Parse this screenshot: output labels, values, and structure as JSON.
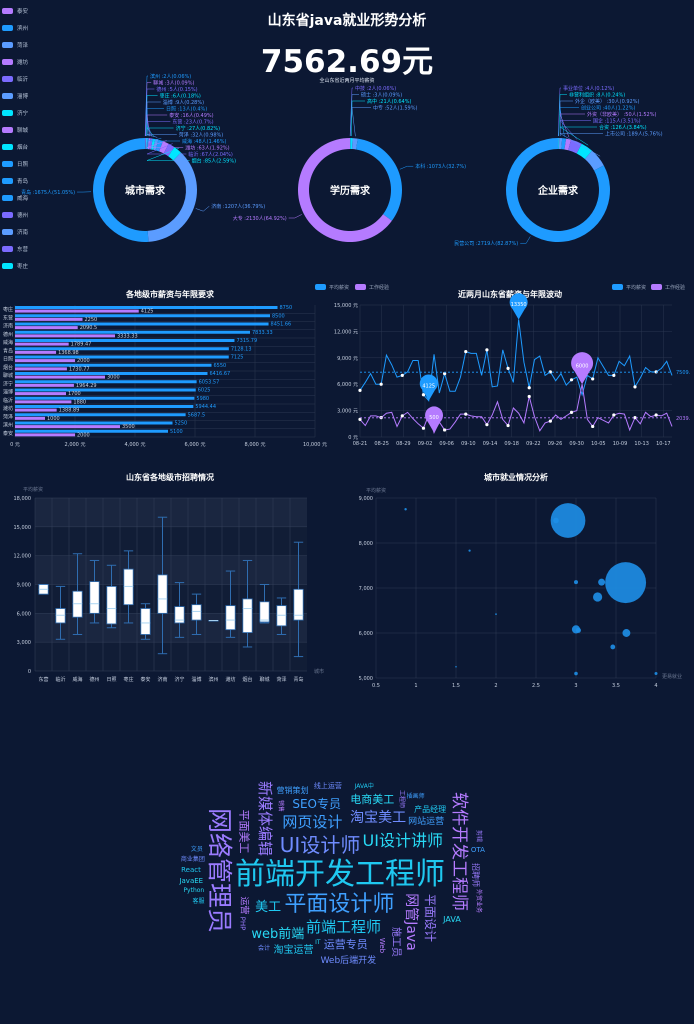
{
  "header": {
    "title": "山东省java就业形势分析",
    "avg_salary": "7562.69元",
    "subtitle": "全山东省近两月平均薪资"
  },
  "city_legend": [
    {
      "name": "泰安",
      "color": "#b57bff"
    },
    {
      "name": "滨州",
      "color": "#1e9bff"
    },
    {
      "name": "菏泽",
      "color": "#5b9cff"
    },
    {
      "name": "潍坊",
      "color": "#b57bff"
    },
    {
      "name": "临沂",
      "color": "#7b6bff"
    },
    {
      "name": "淄博",
      "color": "#5b9cff"
    },
    {
      "name": "济宁",
      "color": "#00e5ff"
    },
    {
      "name": "聊城",
      "color": "#b57bff"
    },
    {
      "name": "烟台",
      "color": "#00e5ff"
    },
    {
      "name": "日照",
      "color": "#1e9bff"
    },
    {
      "name": "青岛",
      "color": "#1e9bff"
    },
    {
      "name": "威海",
      "color": "#1e9bff"
    },
    {
      "name": "德州",
      "color": "#7b6bff"
    },
    {
      "name": "济南",
      "color": "#5b9cff"
    },
    {
      "name": "东营",
      "color": "#7b6bff"
    },
    {
      "name": "枣庄",
      "color": "#00e5ff"
    }
  ],
  "donuts": [
    {
      "title": "城市需求",
      "slices": [
        {
          "label": "滨州 :2人(0.06%)",
          "value": 2,
          "color": "#1e9bff"
        },
        {
          "label": "聊城 :3人(0.09%)",
          "value": 3,
          "color": "#b57bff"
        },
        {
          "label": "德州 :5人(0.15%)",
          "value": 5,
          "color": "#7b6bff"
        },
        {
          "label": "枣庄 :6人(0.18%)",
          "value": 6,
          "color": "#00e5ff"
        },
        {
          "label": "淄博 :9人(0.28%)",
          "value": 9,
          "color": "#5b9cff"
        },
        {
          "label": "日照 :13人(0.4%)",
          "value": 13,
          "color": "#1e9bff"
        },
        {
          "label": "泰安 :16人(0.49%)",
          "value": 16,
          "color": "#b57bff"
        },
        {
          "label": "东营 :23人(0.7%)",
          "value": 23,
          "color": "#7b6bff"
        },
        {
          "label": "济宁 :27人(0.82%)",
          "value": 27,
          "color": "#00e5ff"
        },
        {
          "label": "菏泽 :32人(0.98%)",
          "value": 32,
          "color": "#5b9cff"
        },
        {
          "label": "威海 :48人(1.46%)",
          "value": 48,
          "color": "#1e9bff"
        },
        {
          "label": "潍坊 :63人(1.92%)",
          "value": 63,
          "color": "#b57bff"
        },
        {
          "label": "临沂 :67人(2.04%)",
          "value": 67,
          "color": "#7b6bff"
        },
        {
          "label": "烟台 :85人(2.59%)",
          "value": 85,
          "color": "#00e5ff"
        },
        {
          "label": "济南 :1207人(36.79%)",
          "value": 1207,
          "color": "#5b9cff"
        },
        {
          "label": "青岛 :1675人(51.05%)",
          "value": 1675,
          "color": "#1e9bff"
        }
      ]
    },
    {
      "title": "学历需求",
      "slices": [
        {
          "label": "中技 :2人(0.06%)",
          "value": 2,
          "color": "#7b6bff"
        },
        {
          "label": "硕士 :3人(0.09%)",
          "value": 3,
          "color": "#5b9cff"
        },
        {
          "label": "高中 :21人(0.64%)",
          "value": 21,
          "color": "#00e5ff"
        },
        {
          "label": "中专 :52人(1.59%)",
          "value": 52,
          "color": "#5b9cff"
        },
        {
          "label": "本科 :1073人(32.7%)",
          "value": 1073,
          "color": "#1e9bff"
        },
        {
          "label": "大专 :2130人(64.92%)",
          "value": 2130,
          "color": "#b57bff"
        }
      ]
    },
    {
      "title": "企业需求",
      "slices": [
        {
          "label": "事业单位 :4人(0.12%)",
          "value": 4,
          "color": "#7b6bff"
        },
        {
          "label": "非营利组织 :8人(0.24%)",
          "value": 8,
          "color": "#00e5ff"
        },
        {
          "label": "外企（欧美） :30人(0.92%)",
          "value": 30,
          "color": "#5b9cff"
        },
        {
          "label": "创业公司 :40人(1.22%)",
          "value": 40,
          "color": "#1e9bff"
        },
        {
          "label": "外资（非欧美） :50人(1.52%)",
          "value": 50,
          "color": "#b57bff"
        },
        {
          "label": "国企 :115人(3.51%)",
          "value": 115,
          "color": "#7b6bff"
        },
        {
          "label": "合资 :126人(3.84%)",
          "value": 126,
          "color": "#00e5ff"
        },
        {
          "label": "上市公司 :189人(5.76%)",
          "value": 189,
          "color": "#5b9cff"
        },
        {
          "label": "民营公司 :2719人(82.87%)",
          "value": 2719,
          "color": "#1e9bff"
        }
      ]
    }
  ],
  "chart_data": [
    {
      "type": "bar",
      "title": "各地级市薪资与年限要求",
      "legend": [
        "平均薪资",
        "工作经验"
      ],
      "xlim": [
        0,
        10000
      ],
      "xticks": [
        "0 元",
        "2,000 元",
        "4,000 元",
        "6,000 元",
        "8,000 元",
        "10,000 元"
      ],
      "categories": [
        "枣庄",
        "东营",
        "济南",
        "德州",
        "威海",
        "青岛",
        "日照",
        "烟台",
        "聊城",
        "济宁",
        "淄博",
        "临沂",
        "潍坊",
        "菏泽",
        "滨州",
        "泰安"
      ],
      "series": [
        {
          "name": "平均薪资",
          "values": [
            8750,
            8500,
            8451.66,
            7833.33,
            7315.79,
            7128.13,
            7125,
            6550,
            6416.67,
            6053.57,
            6025,
            5980,
            5944.44,
            5687.5,
            5250,
            5100
          ],
          "labels": [
            "8750",
            "8500",
            "8451.66",
            "7833.33",
            "7315.79",
            "7128.13",
            "7125",
            "6550",
            "6416.67",
            "6053.57",
            "6025",
            "5980",
            "5944.44",
            "5687.5",
            "5250",
            "5100"
          ]
        },
        {
          "name": "工作经验",
          "values": [
            4125,
            2250,
            2090.5,
            3333.33,
            1789.47,
            1368.98,
            2000,
            1730.77,
            3000,
            1964.29,
            1700,
            1880,
            1388.89,
            1000,
            3500,
            2000
          ],
          "labels": [
            "4125",
            "2250",
            "2090.5",
            "3333.33",
            "1789.47",
            "1368.98",
            "2000",
            "1730.77",
            "3000",
            "1964.29",
            "1700",
            "1880",
            "1388.89",
            "1000",
            "3500",
            "2000"
          ]
        }
      ]
    },
    {
      "type": "line",
      "title": "近两月山东省薪资与年限波动",
      "ylim": [
        0,
        15000
      ],
      "yticks": [
        "0 元",
        "3,000 元",
        "6,000 元",
        "9,000 元",
        "12,000 元",
        "15,000 元"
      ],
      "xticks": [
        "08-21",
        "08-25",
        "08-29",
        "09-02",
        "09-06",
        "09-10",
        "09-14",
        "09-18",
        "09-22",
        "09-26",
        "09-30",
        "10-05",
        "10-09",
        "10-13",
        "10-17"
      ],
      "series": [
        {
          "name": "平均薪资",
          "color": "#1e9bff",
          "avg_label": "7509.",
          "max_label": "13350",
          "min_label": "4125",
          "values": [
            5300,
            6200,
            7200,
            6000,
            6000,
            9300,
            8200,
            6800,
            7000,
            7400,
            8700,
            8700,
            4800,
            4125,
            9400,
            5000,
            7200,
            5200,
            5200,
            6800,
            9700,
            9500,
            9500,
            7000,
            9900,
            5700,
            5800,
            9900,
            7800,
            6200,
            13350,
            8500,
            5600,
            8800,
            9200,
            7000,
            7400,
            6400,
            7200,
            5900,
            6500,
            6800,
            4800,
            7000,
            6600,
            9000,
            8000,
            7000,
            7000,
            8600,
            8100,
            9200,
            5700,
            6700,
            7900,
            7400,
            7400,
            7800,
            8600,
            7000
          ]
        },
        {
          "name": "工作经验",
          "color": "#b57bff",
          "avg_label": "2039.",
          "max_label": "6000",
          "min_label": "500",
          "values": [
            2000,
            1300,
            2400,
            2400,
            2200,
            2700,
            2800,
            1200,
            2400,
            2800,
            2100,
            1500,
            1000,
            2500,
            500,
            1700,
            800,
            900,
            1700,
            2600,
            2600,
            2400,
            2300,
            2300,
            1400,
            2500,
            4000,
            2000,
            1300,
            3300,
            2700,
            1600,
            4600,
            2300,
            700,
            1600,
            1800,
            2500,
            2000,
            2400,
            2800,
            3000,
            6000,
            2000,
            1200,
            2200,
            1900,
            1600,
            2500,
            2700,
            2600,
            800,
            2200,
            1500,
            2800,
            2300,
            2500,
            2400,
            2700,
            1200
          ]
        }
      ]
    },
    {
      "type": "boxplot",
      "title": "山东省各地级市招聘情况",
      "ylabel": "平均薪资",
      "xlabel": "城市",
      "ylim": [
        0,
        18000
      ],
      "yticks": [
        "0",
        "3,000",
        "6,000",
        "9,000",
        "12,000",
        "15,000",
        "18,000"
      ],
      "categories": [
        "东营",
        "临沂",
        "威海",
        "德州",
        "日照",
        "枣庄",
        "泰安",
        "济南",
        "济宁",
        "淄博",
        "滨州",
        "潍坊",
        "烟台",
        "聊城",
        "菏泽",
        "青岛"
      ],
      "values": [
        [
          8000,
          8000,
          8500,
          9000,
          9000
        ],
        [
          3300,
          5000,
          5800,
          6500,
          8800
        ],
        [
          3800,
          5600,
          7000,
          8300,
          12200
        ],
        [
          5000,
          6000,
          7000,
          9300,
          11500
        ],
        [
          4500,
          4900,
          6500,
          8800,
          11000
        ],
        [
          5000,
          6900,
          8800,
          10600,
          12500
        ],
        [
          3300,
          3800,
          5000,
          6500,
          7000
        ],
        [
          1800,
          6000,
          7500,
          10000,
          16000
        ],
        [
          3500,
          5000,
          5300,
          6700,
          9200
        ],
        [
          3800,
          5300,
          6200,
          6900,
          8000
        ],
        [
          5250,
          5250,
          5250,
          5250,
          5250
        ],
        [
          3500,
          4300,
          5300,
          6800,
          10400
        ],
        [
          2500,
          4000,
          6500,
          7500,
          11500
        ],
        [
          5000,
          5100,
          5300,
          7200,
          9000
        ],
        [
          3800,
          4700,
          5800,
          6800,
          7600
        ],
        [
          1500,
          5300,
          5800,
          8500,
          13400
        ]
      ]
    },
    {
      "type": "scatter",
      "title": "城市就业情况分析",
      "ylabel": "平均薪资",
      "xlabel": "更易就业",
      "xlim": [
        0.5,
        4
      ],
      "ylim": [
        5000,
        9000
      ],
      "xticks": [
        "0.5",
        "1",
        "1.5",
        "2",
        "2.5",
        "3",
        "3.5",
        "4"
      ],
      "yticks": [
        "5,000",
        "6,000",
        "7,000",
        "8,000",
        "9,000"
      ],
      "points": [
        [
          0.87,
          8750,
          6
        ],
        [
          1.67,
          7830,
          5
        ],
        [
          2,
          6420,
          3
        ],
        [
          1.5,
          5250,
          2
        ],
        [
          2.9,
          8500,
          1207
        ],
        [
          2.75,
          8500,
          32
        ],
        [
          3,
          7130,
          16
        ],
        [
          3.32,
          7130,
          48
        ],
        [
          3.27,
          6800,
          85
        ],
        [
          3.62,
          7120,
          1675
        ],
        [
          3,
          6080,
          67
        ],
        [
          3.03,
          6060,
          27
        ],
        [
          3.63,
          6000,
          63
        ],
        [
          3.46,
          5690,
          23
        ],
        [
          3,
          5100,
          13
        ],
        [
          4,
          5100,
          9
        ]
      ]
    }
  ],
  "wordcloud": [
    "前端开发工程师",
    "网络管理员",
    "平面设计师",
    "UI设计师",
    "软件开发工程师",
    "UI设计讲师",
    "前端工程师",
    "新媒体编辑",
    "网页设计",
    "淘宝美工",
    "网管Java",
    "web前端",
    "美工",
    "平面设计",
    "SEO专员",
    "运营专员",
    "平面美工",
    "电商美工",
    "淘宝运营",
    "施工员",
    "网站运营",
    "Web后端开发",
    "运营",
    "JAVA",
    "产品经理",
    "招聘师",
    "营销策划",
    "线上运营",
    "Web",
    "JavaEE",
    "React",
    "PHP",
    "OTA",
    "商业集团",
    "外贸业务",
    "Python",
    "JAVA中",
    "工程师",
    "插画师",
    "会计",
    "销售",
    "IT",
    "客服",
    "剪辑",
    "文员"
  ]
}
